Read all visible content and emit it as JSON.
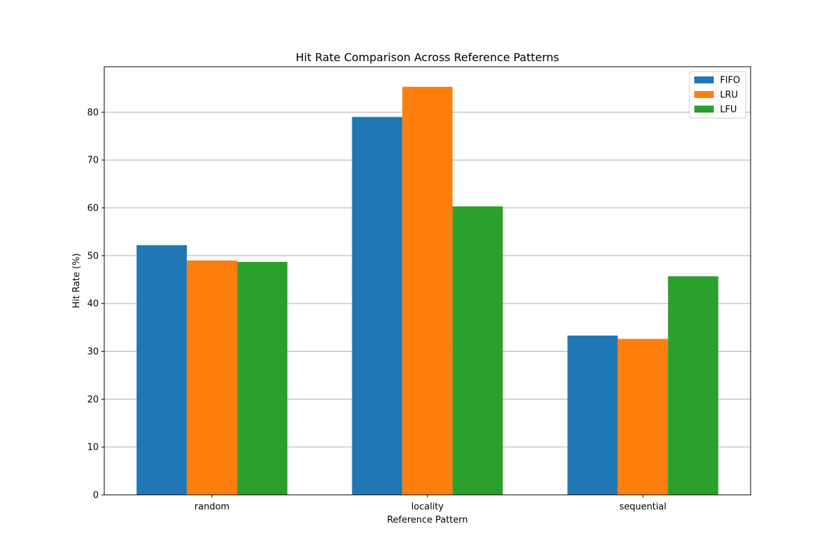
{
  "chart_data": {
    "type": "bar",
    "title": "Hit Rate Comparison Across Reference Patterns",
    "xlabel": "Reference Pattern",
    "ylabel": "Hit Rate (%)",
    "categories": [
      "random",
      "locality",
      "sequential"
    ],
    "series": [
      {
        "name": "FIFO",
        "values": [
          52.2,
          79.0,
          33.3
        ],
        "color": "#1f77b4"
      },
      {
        "name": "LRU",
        "values": [
          49.0,
          85.3,
          32.6
        ],
        "color": "#ff7f0e"
      },
      {
        "name": "LFU",
        "values": [
          48.7,
          60.3,
          45.7
        ],
        "color": "#2ca02c"
      }
    ],
    "ylim": [
      0,
      89.5
    ],
    "yticks": [
      0,
      10,
      20,
      30,
      40,
      50,
      60,
      70,
      80
    ],
    "grid": "y",
    "legend_position": "top-right"
  }
}
